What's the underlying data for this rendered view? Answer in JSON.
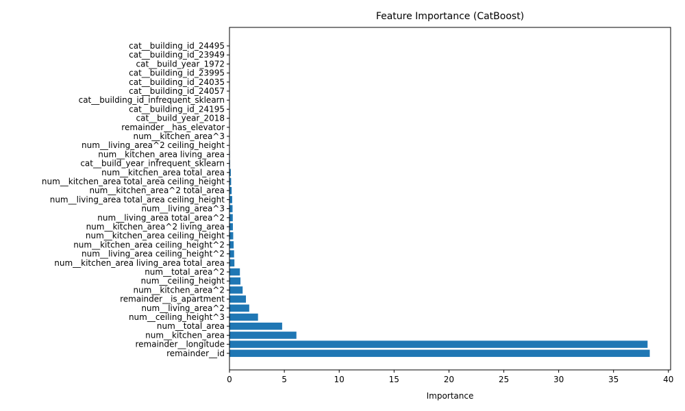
{
  "chart_data": {
    "type": "bar",
    "orientation": "horizontal",
    "title": "Feature Importance (CatBoost)",
    "xlabel": "Importance",
    "ylabel": "",
    "xlim": [
      0,
      40.2
    ],
    "xticks": [
      0,
      5,
      10,
      15,
      20,
      25,
      30,
      35,
      40
    ],
    "grid": false,
    "bar_color": "#1f77b4",
    "categories": [
      "remainder__id",
      "remainder__longitude",
      "num__kitchen_area",
      "num__total_area",
      "num__ceiling_height^3",
      "num__living_area^2",
      "remainder__is_apartment",
      "num__kitchen_area^2",
      "num__ceiling_height",
      "num__total_area^2",
      "num__kitchen_area living_area total_area",
      "num__living_area ceiling_height^2",
      "num__kitchen_area ceiling_height^2",
      "num__kitchen_area ceiling_height",
      "num__kitchen_area^2 living_area",
      "num__living_area total_area^2",
      "num__living_area^3",
      "num__living_area total_area ceiling_height",
      "num__kitchen_area^2 total_area",
      "num__kitchen_area total_area ceiling_height",
      "num__kitchen_area total_area",
      "cat__build_year_infrequent_sklearn",
      "num__kitchen_area living_area",
      "num__living_area^2 ceiling_height",
      "num__kitchen_area^3",
      "remainder__has_elevator",
      "cat__build_year_2018",
      "cat__building_id_24195",
      "cat__building_id_infrequent_sklearn",
      "cat__building_id_24057",
      "cat__building_id_24035",
      "cat__building_id_23995",
      "cat__build_year_1972",
      "cat__building_id_23949",
      "cat__building_id_24495"
    ],
    "values": [
      38.3,
      38.1,
      6.1,
      4.8,
      2.6,
      1.8,
      1.5,
      1.2,
      1.0,
      0.95,
      0.45,
      0.42,
      0.38,
      0.34,
      0.31,
      0.3,
      0.28,
      0.25,
      0.2,
      0.15,
      0.12,
      0.05,
      0.04,
      0.03,
      0.02,
      0.01,
      0.0,
      0.0,
      0.0,
      0.0,
      0.0,
      0.0,
      0.0,
      0.0,
      0.0
    ]
  }
}
